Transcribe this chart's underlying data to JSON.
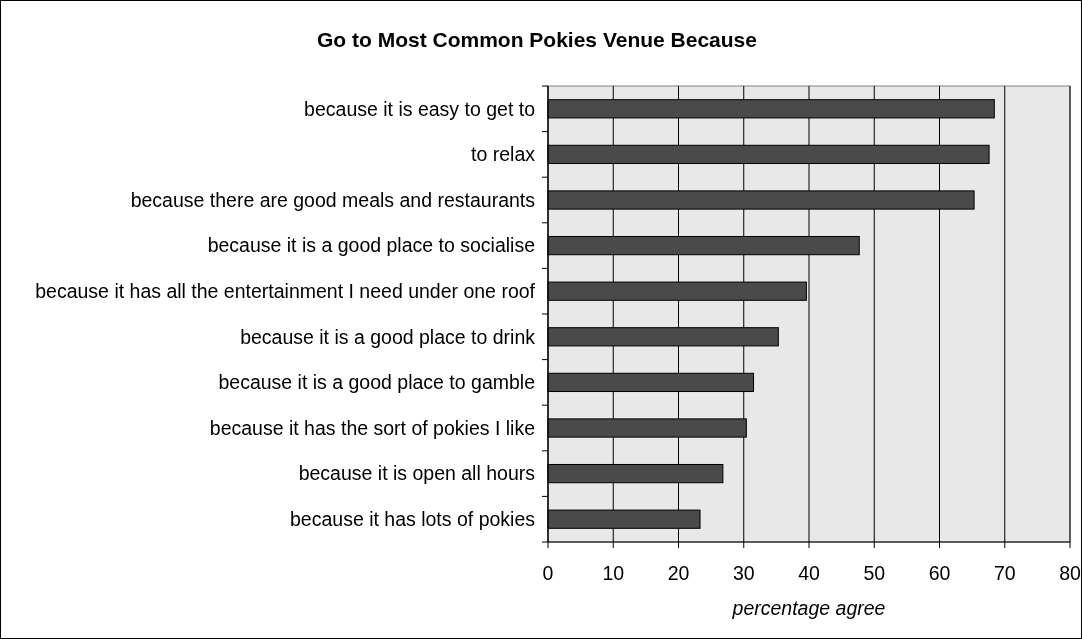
{
  "chart_data": {
    "type": "bar",
    "orientation": "horizontal",
    "title": "Go to Most Common Pokies Venue Because",
    "xlabel": "percentage agree",
    "categories": [
      "because it is easy to get to",
      "to relax",
      "because there are good meals and restaurants",
      "because it is a good place to socialise",
      "because it has all the entertainment I need under one roof",
      "because it is a good place to drink",
      "because it is a good place to gamble",
      "because it has the sort of pokies I like",
      "because it is open all hours",
      "because it has lots of pokies"
    ],
    "values": [
      68.4,
      67.6,
      65.3,
      47.7,
      39.6,
      35.3,
      31.5,
      30.4,
      26.8,
      23.3
    ],
    "color": "#4a4a4a",
    "xlim": [
      0,
      80
    ],
    "xticks": [
      0,
      10,
      20,
      30,
      40,
      50,
      60,
      70,
      80
    ],
    "grid": "x"
  }
}
